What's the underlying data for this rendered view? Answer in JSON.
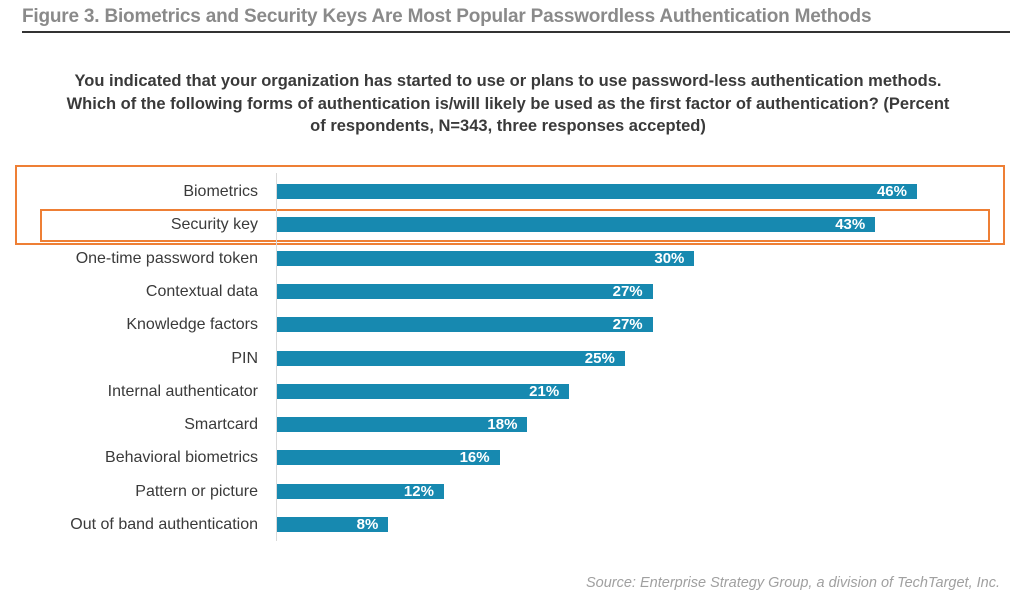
{
  "figure": {
    "title": "Figure 3. Biometrics and Security Keys Are Most Popular Passwordless Authentication Methods",
    "question": "You indicated that your organization has started to use or plans to use password-less authentication methods. Which of the following forms of authentication is/will likely be used as the first factor of authentication? (Percent of respondents, N=343, three responses accepted)",
    "source": "Source: Enterprise Strategy Group, a division of TechTarget, Inc.",
    "bar_color": "#1789b0",
    "highlight_color": "#ee7f35"
  },
  "chart_data": {
    "type": "bar",
    "orientation": "horizontal",
    "title": "Figure 3. Biometrics and Security Keys Are Most Popular Passwordless Authentication Methods",
    "subtitle": "You indicated that your organization has started to use or plans to use password-less authentication methods. Which of the following forms of authentication is/will likely be used as the first factor of authentication? (Percent of respondents, N=343, three responses accepted)",
    "xlabel": "",
    "ylabel": "",
    "xlim": [
      0,
      50
    ],
    "grid": false,
    "unit": "%",
    "categories": [
      "Biometrics",
      "Security key",
      "One-time password token",
      "Contextual data",
      "Knowledge factors",
      "PIN",
      "Internal authenticator",
      "Smartcard",
      "Behavioral biometrics",
      "Pattern or picture",
      "Out of band authentication"
    ],
    "values": [
      46,
      43,
      30,
      27,
      27,
      25,
      21,
      18,
      16,
      12,
      8
    ],
    "labels": [
      "46%",
      "43%",
      "30%",
      "27%",
      "27%",
      "25%",
      "21%",
      "18%",
      "16%",
      "12%",
      "8%"
    ],
    "highlighted": [
      "Biometrics",
      "Security key"
    ]
  }
}
